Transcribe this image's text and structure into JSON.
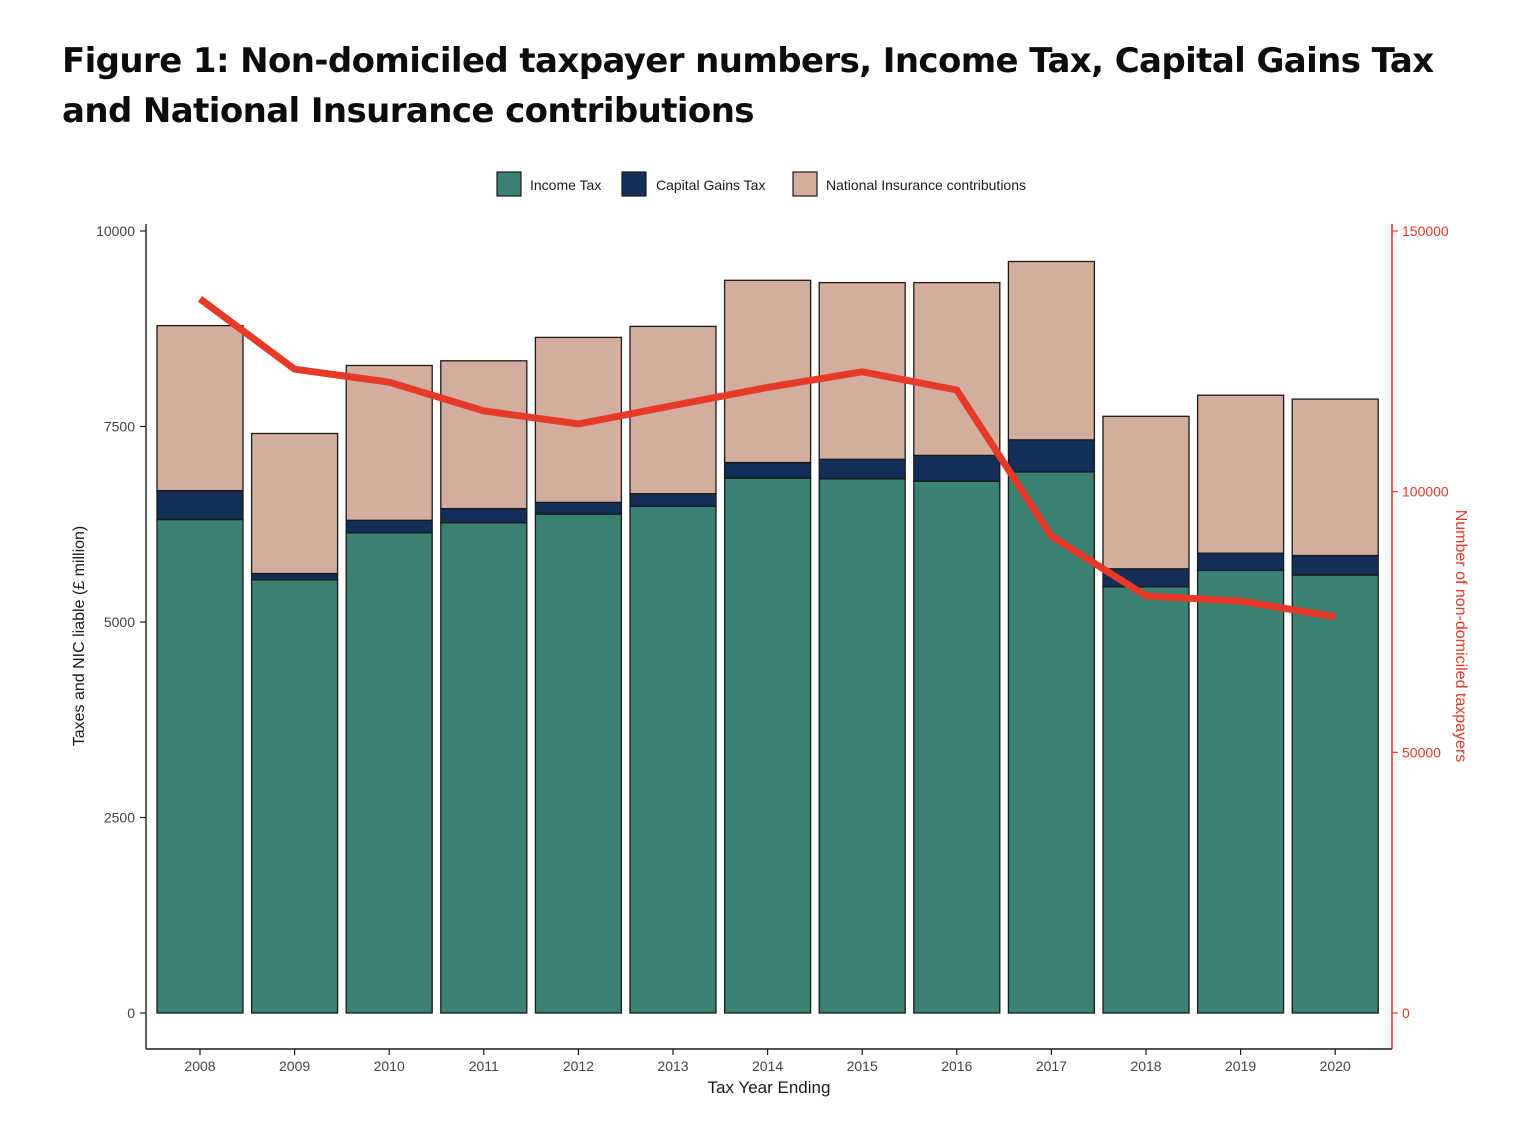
{
  "page": {
    "title": "Figure 1: Non-domiciled taxpayer numbers, Income Tax, Capital Gains Tax and National Insurance contributions"
  },
  "chart_data": {
    "type": "bar",
    "stacked": true,
    "title": "Figure 1: Non-domiciled taxpayer numbers, Income Tax, Capital Gains Tax and National Insurance contributions",
    "xlabel": "Tax Year Ending",
    "ylabel": "Taxes and NIC liable (£ million)",
    "y2label": "Number of non-domiciled taxpayers",
    "categories": [
      "2008",
      "2009",
      "2010",
      "2011",
      "2012",
      "2013",
      "2014",
      "2015",
      "2016",
      "2017",
      "2018",
      "2019",
      "2020"
    ],
    "ylim": [
      0,
      10000
    ],
    "yticks": [
      0,
      2500,
      5000,
      7500,
      10000
    ],
    "y2lim": [
      0,
      150000
    ],
    "y2ticks": [
      0,
      50000,
      100000,
      150000
    ],
    "legend_position": "top",
    "grid": false,
    "series": [
      {
        "name": "Income Tax",
        "color": "#3b8272",
        "values": [
          6310,
          5540,
          6140,
          6270,
          6380,
          6480,
          6840,
          6830,
          6800,
          6920,
          5450,
          5660,
          5600
        ]
      },
      {
        "name": "Capital Gains Tax",
        "color": "#132e57",
        "values": [
          370,
          80,
          160,
          180,
          150,
          160,
          200,
          250,
          330,
          410,
          230,
          220,
          250
        ]
      },
      {
        "name": "National Insurance contributions",
        "color": "#d3ae9f",
        "values": [
          2110,
          1790,
          1980,
          1890,
          2110,
          2140,
          2330,
          2260,
          2210,
          2280,
          1950,
          2020,
          2000
        ]
      }
    ],
    "line": {
      "name": "Number of non-domiciled taxpayers",
      "axis": "right",
      "color": "#e53a28",
      "values": [
        137000,
        123500,
        121000,
        115500,
        113000,
        116500,
        120000,
        123000,
        119500,
        91500,
        80000,
        79000,
        76000
      ]
    }
  }
}
